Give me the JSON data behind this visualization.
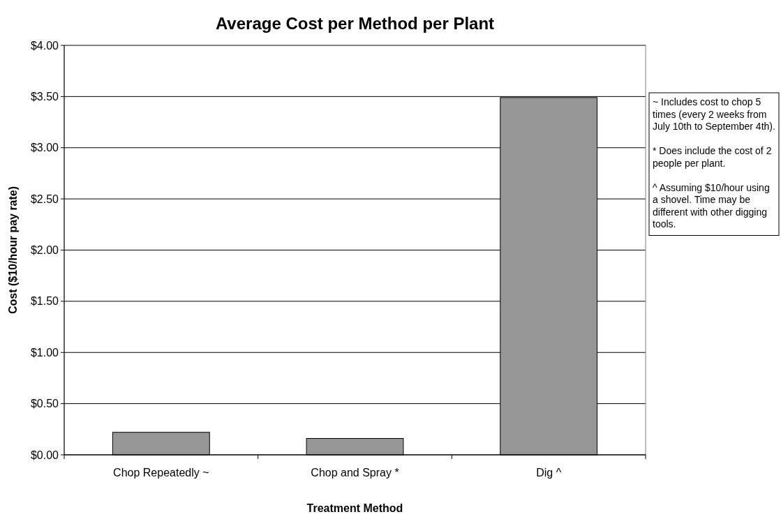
{
  "chart_data": {
    "type": "bar",
    "title": "Average Cost per Method per Plant",
    "xlabel": "Treatment Method",
    "ylabel": "Cost ($10/hour pay rate)",
    "categories": [
      "Chop Repeatedly ~",
      "Chop and Spray *",
      "Dig ^"
    ],
    "values": [
      0.22,
      0.16,
      3.49
    ],
    "color": "#969696",
    "ylim": [
      0,
      4
    ],
    "yticks": [
      {
        "value": 0,
        "label": "$0.00"
      },
      {
        "value": 0.5,
        "label": "$0.50"
      },
      {
        "value": 1,
        "label": "$1.00"
      },
      {
        "value": 1.5,
        "label": "$1.50"
      },
      {
        "value": 2,
        "label": "$2.00"
      },
      {
        "value": 2.5,
        "label": "$2.50"
      },
      {
        "value": 3,
        "label": "$3.00"
      },
      {
        "value": 3.5,
        "label": "$3.50"
      },
      {
        "value": 4,
        "label": "$4.00"
      }
    ],
    "grid": "y",
    "annotations": [
      "~ Includes cost to chop 5 times (every 2 weeks from July 10th to September 4th).",
      "* Does include the cost of 2 people per plant.",
      "^ Assuming $10/hour using a shovel. Time may be different with other digging tools."
    ]
  }
}
